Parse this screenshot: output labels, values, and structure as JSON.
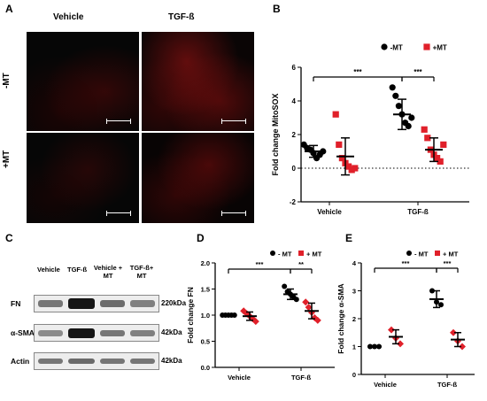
{
  "panels": {
    "a": "A",
    "b": "B",
    "c": "C",
    "d": "D",
    "e": "E"
  },
  "panel_a": {
    "col_labels": [
      "Vehicle",
      "TGF-ß"
    ],
    "row_labels": [
      "-MT",
      "+MT"
    ]
  },
  "panel_c": {
    "lane_labels": [
      "Vehicle",
      "TGF-ß",
      "Vehicle +\nMT",
      "TGF-ß+\nMT"
    ],
    "row_labels": [
      "FN",
      "α-SMA",
      "Actin"
    ],
    "size_labels": [
      "220kDa",
      "42kDa",
      "42kDa"
    ],
    "band_intensity": {
      "FN": [
        0.55,
        0.95,
        0.6,
        0.55
      ],
      "α-SMA": [
        0.45,
        0.95,
        0.55,
        0.5
      ],
      "Actin": [
        0.55,
        0.6,
        0.55,
        0.55
      ]
    }
  },
  "chart_data": [
    {
      "panel": "B",
      "type": "scatter",
      "ylabel": "Fold change MitoSOX",
      "categories": [
        "Vehicle",
        "TGF-ß"
      ],
      "ylim": [
        -2,
        6
      ],
      "yticks": [
        -2,
        0,
        2,
        4,
        6
      ],
      "legend": [
        "-MT",
        "+MT"
      ],
      "series": [
        {
          "name": "-MT",
          "color": "#000000",
          "marker": "circle",
          "values": [
            [
              1.4,
              1.2,
              1.1,
              0.9,
              0.6,
              0.8,
              1.0
            ],
            [
              4.8,
              4.3,
              3.7,
              3.2,
              2.7,
              2.5,
              3.0
            ]
          ],
          "mean": [
            1.0,
            3.2
          ],
          "sd": [
            0.35,
            0.9
          ]
        },
        {
          "name": "+MT",
          "color": "#e0202a",
          "marker": "square",
          "values": [
            [
              3.2,
              1.4,
              0.6,
              0.3,
              0.1,
              -0.1,
              0.0
            ],
            [
              2.3,
              1.8,
              1.1,
              0.8,
              0.6,
              0.4,
              1.4
            ]
          ],
          "mean": [
            0.7,
            1.1
          ],
          "sd": [
            1.1,
            0.7
          ]
        }
      ],
      "significance": [
        {
          "label": "***",
          "from": "Vehicle -MT",
          "to": "TGF-ß -MT"
        },
        {
          "label": "***",
          "from": "TGF-ß -MT",
          "to": "TGF-ß +MT"
        }
      ],
      "reference_line": 0
    },
    {
      "panel": "D",
      "type": "scatter",
      "ylabel": "Fold change FN",
      "categories": [
        "Vehicle",
        "TGF-ß"
      ],
      "ylim": [
        0,
        2
      ],
      "yticks": [
        0.0,
        0.5,
        1.0,
        1.5,
        2.0
      ],
      "legend": [
        "- MT",
        "+ MT"
      ],
      "series": [
        {
          "name": "- MT",
          "color": "#000000",
          "marker": "circle",
          "values": [
            [
              1.0,
              1.0,
              1.0,
              1.0,
              1.0
            ],
            [
              1.55,
              1.45,
              1.4,
              1.35,
              1.3
            ]
          ],
          "mean": [
            1.0,
            1.4
          ],
          "sd": [
            0.0,
            0.1
          ]
        },
        {
          "name": "+ MT",
          "color": "#e0202a",
          "marker": "diamond",
          "values": [
            [
              1.08,
              1.03,
              0.98,
              0.93,
              0.88
            ],
            [
              1.25,
              1.15,
              1.05,
              0.95,
              0.9
            ]
          ],
          "mean": [
            0.98,
            1.08
          ],
          "sd": [
            0.08,
            0.15
          ]
        }
      ],
      "significance": [
        {
          "label": "***",
          "from": "Vehicle - MT",
          "to": "TGF-ß - MT"
        },
        {
          "label": "**",
          "from": "TGF-ß - MT",
          "to": "TGF-ß + MT"
        }
      ]
    },
    {
      "panel": "E",
      "type": "scatter",
      "ylabel": "Fold change α-SMA",
      "categories": [
        "Vehicle",
        "TGF-ß"
      ],
      "ylim": [
        0,
        4
      ],
      "yticks": [
        0,
        1,
        2,
        3,
        4
      ],
      "legend": [
        "- MT",
        "+ MT"
      ],
      "series": [
        {
          "name": "- MT",
          "color": "#000000",
          "marker": "circle",
          "values": [
            [
              1.0,
              1.0,
              1.0
            ],
            [
              3.0,
              2.6,
              2.5
            ]
          ],
          "mean": [
            1.0,
            2.7
          ],
          "sd": [
            0.0,
            0.3
          ]
        },
        {
          "name": "+ MT",
          "color": "#e0202a",
          "marker": "diamond",
          "values": [
            [
              1.6,
              1.3,
              1.1
            ],
            [
              1.5,
              1.2,
              1.0
            ]
          ],
          "mean": [
            1.35,
            1.25
          ],
          "sd": [
            0.25,
            0.25
          ]
        }
      ],
      "significance": [
        {
          "label": "***",
          "from": "Vehicle - MT",
          "to": "TGF-ß - MT"
        },
        {
          "label": "***",
          "from": "TGF-ß - MT",
          "to": "TGF-ß + MT"
        }
      ]
    }
  ]
}
